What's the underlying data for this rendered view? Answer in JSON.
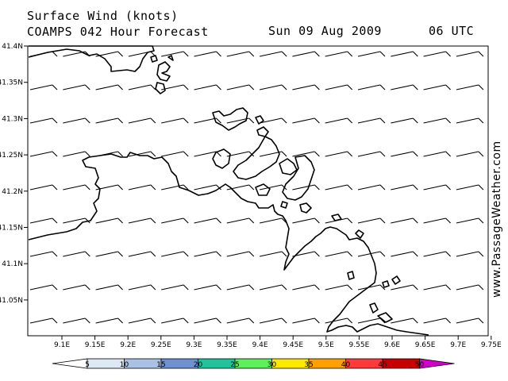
{
  "header": {
    "title": "Surface Wind (knots)",
    "model": "COAMPS 042 Hour Forecast",
    "date": "Sun 09 Aug 2009",
    "time": "06 UTC"
  },
  "credit": "www.PassageWeather.com",
  "axes": {
    "lat_ticks": [
      "41.4N",
      "41.35N",
      "41.3N",
      "41.25N",
      "41.2N",
      "41.15N",
      "41.1N",
      "41.05N"
    ],
    "lon_ticks": [
      "9.1E",
      "9.15E",
      "9.2E",
      "9.25E",
      "9.3E",
      "9.35E",
      "9.4E",
      "9.45E",
      "9.5E",
      "9.55E",
      "9.6E",
      "9.65E",
      "9.7E",
      "9.75E"
    ]
  },
  "wind_field": {
    "units": "knots",
    "typical_speed_kt": 10,
    "direction": "westerly"
  },
  "color_scale": {
    "labels": [
      "5",
      "10",
      "15",
      "20",
      "25",
      "30",
      "35",
      "40",
      "45",
      "50"
    ],
    "colors": [
      "#ffffff",
      "#dce8f4",
      "#a9c2e3",
      "#6f91cf",
      "#20c39a",
      "#5ef05a",
      "#ffe800",
      "#ff9f00",
      "#ff3a3a",
      "#c80000",
      "#d400cc"
    ]
  }
}
